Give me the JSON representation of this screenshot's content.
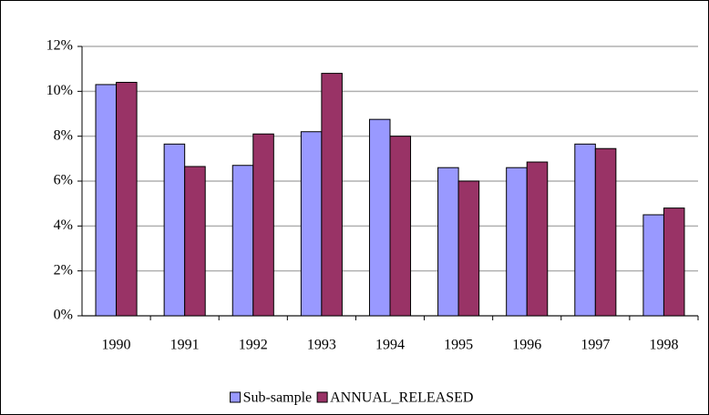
{
  "chart_data": {
    "type": "bar",
    "categories": [
      "1990",
      "1991",
      "1992",
      "1993",
      "1994",
      "1995",
      "1996",
      "1997",
      "1998"
    ],
    "series": [
      {
        "name": "Sub-sample",
        "color": "#9999ff",
        "values": [
          10.3,
          7.65,
          6.7,
          8.2,
          8.75,
          6.6,
          6.6,
          7.65,
          4.5
        ]
      },
      {
        "name": "ANNUAL_RELEASED",
        "color": "#993366",
        "values": [
          10.4,
          6.65,
          8.1,
          10.8,
          8.0,
          6.0,
          6.85,
          7.45,
          4.8
        ]
      }
    ],
    "ylim": [
      0,
      12
    ],
    "yticks": [
      {
        "value": 0,
        "label": "0%"
      },
      {
        "value": 2,
        "label": "2%"
      },
      {
        "value": 4,
        "label": "4%"
      },
      {
        "value": 6,
        "label": "6%"
      },
      {
        "value": 8,
        "label": "8%"
      },
      {
        "value": 10,
        "label": "10%"
      },
      {
        "value": 12,
        "label": "12%"
      }
    ],
    "grid": true,
    "legend": "bottom"
  }
}
